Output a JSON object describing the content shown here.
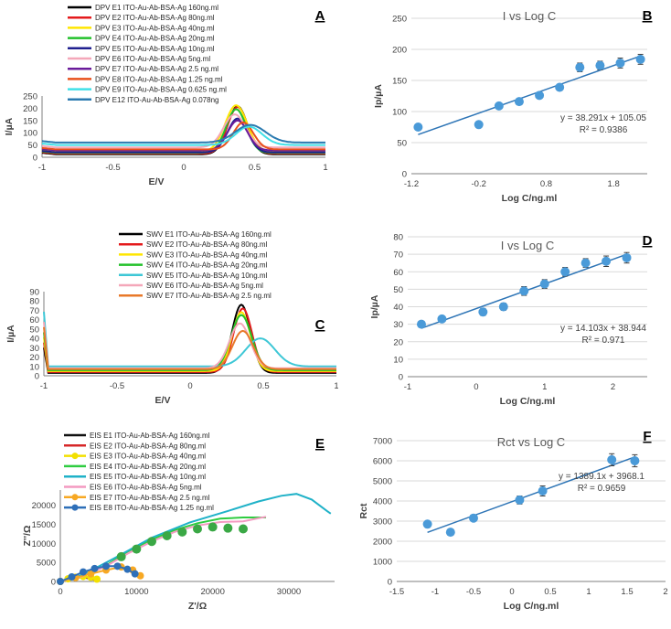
{
  "chart_data": [
    {
      "id": "A",
      "type": "line",
      "panel_label": "A",
      "xlabel": "E/V",
      "ylabel": "I/µA",
      "xlim": [
        -1,
        1
      ],
      "ylim": [
        0,
        250
      ],
      "xticks": [
        -1,
        -0.5,
        0,
        0.5,
        1
      ],
      "yticks": [
        0,
        50,
        100,
        150,
        200,
        250
      ],
      "xtick_labels": [
        "-1",
        "-0.5",
        "0",
        "0.5",
        "1"
      ],
      "ytick_labels": [
        "0",
        "50",
        "100",
        "150",
        "200",
        "250"
      ],
      "series": [
        {
          "name": "DPV E1 ITO-Au-Ab-BSA-Ag 160ng.ml",
          "color": "#000000",
          "base": 12,
          "peak": 208,
          "center": 0.38,
          "width": 0.1
        },
        {
          "name": "DPV E2 ITO-Au-Ab-BSA-Ag 80ng.ml",
          "color": "#e41a1c",
          "base": 15,
          "peak": 205,
          "center": 0.38,
          "width": 0.1
        },
        {
          "name": "DPV E3 ITO-Au-Ab-BSA-Ag 40ng.ml",
          "color": "#ffe600",
          "base": 22,
          "peak": 212,
          "center": 0.37,
          "width": 0.11
        },
        {
          "name": "DPV E4 ITO-Au-Ab-BSA-Ag 20ng.ml",
          "color": "#22c02a",
          "base": 18,
          "peak": 196,
          "center": 0.37,
          "width": 0.1
        },
        {
          "name": "DPV E5 ITO-Au-Ab-BSA-Ag 10ng.ml",
          "color": "#1f1f8f",
          "base": 20,
          "peak": 158,
          "center": 0.38,
          "width": 0.1
        },
        {
          "name": "DPV E6 ITO-Au-Ab-BSA-Ag 5ng.ml",
          "color": "#f4a7b9",
          "base": 40,
          "peak": 175,
          "center": 0.36,
          "width": 0.11
        },
        {
          "name": "DPV E7 ITO-Au-Ab-BSA-Ag 2.5 ng.ml",
          "color": "#6a1b9a",
          "base": 28,
          "peak": 150,
          "center": 0.38,
          "width": 0.1
        },
        {
          "name": "DPV E8 ITO-Au-Ab-BSA-Ag 1.25 ng.ml",
          "color": "#e8511c",
          "base": 32,
          "peak": 142,
          "center": 0.42,
          "width": 0.1
        },
        {
          "name": "DPV E9 ITO-Au-Ab-BSA-Ag 0.625 ng.ml",
          "color": "#40e0e8",
          "base": 50,
          "peak": 125,
          "center": 0.46,
          "width": 0.13
        },
        {
          "name": "DPV E12 ITO-Au-Ab-BSA-Ag 0.078ng",
          "color": "#2a7ab0",
          "base": 60,
          "peak": 132,
          "center": 0.47,
          "width": 0.15
        }
      ]
    },
    {
      "id": "B",
      "type": "scatter",
      "panel_label": "B",
      "title": "I vs Log C",
      "xlabel": "Log C/ng.ml",
      "ylabel": "Ip/µA",
      "xlim": [
        -1.2,
        2.3
      ],
      "ylim": [
        0,
        250
      ],
      "xticks": [
        -1.2,
        -0.2,
        0.8,
        1.8
      ],
      "yticks": [
        0,
        50,
        100,
        150,
        200,
        250
      ],
      "xtick_labels": [
        "-1.2",
        "-0.2",
        "0.8",
        "1.8"
      ],
      "ytick_labels": [
        "0",
        "50",
        "100",
        "150",
        "200",
        "250"
      ],
      "x": [
        -1.1,
        -0.2,
        0.1,
        0.4,
        0.7,
        1.0,
        1.3,
        1.6,
        1.9,
        2.2
      ],
      "y": [
        75,
        79,
        109,
        116,
        126,
        139,
        171,
        174,
        178,
        184
      ],
      "error": [
        3,
        3,
        4,
        4,
        5,
        5,
        7,
        7,
        8,
        8
      ],
      "fit": {
        "slope": 38.291,
        "intercept": 105.05,
        "x_range": [
          -1.1,
          2.2
        ]
      },
      "equation": "y = 38.291x + 105.05",
      "r2": "R² = 0.9386"
    },
    {
      "id": "C",
      "type": "line",
      "panel_label": "C",
      "xlabel": "E/V",
      "ylabel": "I/µA",
      "xlim": [
        -1,
        1
      ],
      "ylim": [
        0,
        90
      ],
      "xticks": [
        -1,
        -0.5,
        0,
        0.5,
        1
      ],
      "yticks": [
        0,
        10,
        20,
        30,
        40,
        50,
        60,
        70,
        80,
        90
      ],
      "xtick_labels": [
        "-1",
        "-0.5",
        "0",
        "0.5",
        "1"
      ],
      "ytick_labels": [
        "0",
        "10",
        "20",
        "30",
        "40",
        "50",
        "60",
        "70",
        "80",
        "90"
      ],
      "series": [
        {
          "name": "SWV E1 ITO-Au-Ab-BSA-Ag 160ng.ml",
          "color": "#000000",
          "base": 3,
          "peak": 76,
          "center": 0.35,
          "width": 0.09
        },
        {
          "name": "SWV E2 ITO-Au-Ab-BSA-Ag 80ng.ml",
          "color": "#e41a1c",
          "base": 4,
          "peak": 72,
          "center": 0.36,
          "width": 0.09
        },
        {
          "name": "SWV E3 ITO-Au-Ab-BSA-Ag 40ng.ml",
          "color": "#ffe600",
          "base": 5,
          "peak": 68,
          "center": 0.35,
          "width": 0.09
        },
        {
          "name": "SWV E4 ITO-Au-Ab-BSA-Ag 20ng.ml",
          "color": "#22c02a",
          "base": 6,
          "peak": 65,
          "center": 0.35,
          "width": 0.1
        },
        {
          "name": "SWV E5 ITO-Au-Ab-BSA-Ag 10ng.ml",
          "color": "#3ec7d6",
          "base": 10,
          "peak": 40,
          "center": 0.48,
          "width": 0.14
        },
        {
          "name": "SWV E6 ITO-Au-Ab-BSA-Ag 5ng.ml",
          "color": "#f4a7b9",
          "base": 8,
          "peak": 56,
          "center": 0.34,
          "width": 0.1
        },
        {
          "name": "SWV E7 ITO-Au-Ab-BSA-Ag 2.5 ng.ml",
          "color": "#e8792a",
          "base": 7,
          "peak": 48,
          "center": 0.36,
          "width": 0.1
        }
      ]
    },
    {
      "id": "D",
      "type": "scatter",
      "panel_label": "D",
      "title": "I vs Log C",
      "xlabel": "Log C/ng.ml",
      "ylabel": "Ip/µA",
      "xlim": [
        -1,
        2.5
      ],
      "ylim": [
        0,
        80
      ],
      "xticks": [
        -1,
        0,
        1,
        2
      ],
      "yticks": [
        0,
        10,
        20,
        30,
        40,
        50,
        60,
        70,
        80
      ],
      "xtick_labels": [
        "-1",
        "0",
        "1",
        "2"
      ],
      "ytick_labels": [
        "0",
        "10",
        "20",
        "30",
        "40",
        "50",
        "60",
        "70",
        "80"
      ],
      "x": [
        -0.8,
        -0.5,
        0.1,
        0.4,
        0.7,
        1.0,
        1.3,
        1.6,
        1.9,
        2.2
      ],
      "y": [
        30,
        33,
        37,
        40,
        49,
        53,
        60,
        65,
        66,
        68
      ],
      "error": [
        1,
        1,
        2,
        2,
        2.5,
        2.5,
        2.5,
        2.5,
        3,
        3
      ],
      "fit": {
        "slope": 14.103,
        "intercept": 38.944,
        "x_range": [
          -0.8,
          2.2
        ]
      },
      "equation": "y = 14.103x + 38.944",
      "r2": "R² = 0.971"
    },
    {
      "id": "E",
      "type": "scatter",
      "panel_label": "E",
      "xlabel": "Z'/Ω",
      "ylabel": "Z''/Ω",
      "xlim": [
        0,
        36000
      ],
      "ylim": [
        0,
        24000
      ],
      "xticks": [
        0,
        10000,
        20000,
        30000
      ],
      "yticks": [
        0,
        5000,
        10000,
        15000,
        20000
      ],
      "xtick_labels": [
        "0",
        "10000",
        "20000",
        "30000"
      ],
      "ytick_labels": [
        "0",
        "5000",
        "10000",
        "15000",
        "20000"
      ],
      "series": [
        {
          "name": "EIS E1 ITO-Au-Ab-BSA-Ag 160ng.ml",
          "color": "#111111",
          "marker": "plus",
          "x": [
            0,
            800,
            1600,
            2400,
            3200,
            4000,
            4600
          ],
          "y": [
            0,
            500,
            900,
            1100,
            1000,
            700,
            300
          ]
        },
        {
          "name": "EIS E2 ITO-Au-Ab-BSA-Ag 80ng.ml",
          "color": "#d62728",
          "marker": "x",
          "x": [
            0,
            900,
            1800,
            2800,
            3800,
            4500
          ],
          "y": [
            0,
            600,
            1000,
            1200,
            900,
            400
          ]
        },
        {
          "name": "EIS E3 ITO-Au-Ab-BSA-Ag 40ng.ml",
          "color": "#f2e000",
          "marker": "circle",
          "x": [
            0,
            1000,
            2000,
            3000,
            4000,
            4800
          ],
          "y": [
            0,
            700,
            1100,
            1300,
            1100,
            600
          ]
        },
        {
          "name": "EIS E4 ITO-Au-Ab-BSA-Ag 20ng.ml",
          "color": "#2ecc40",
          "marker": "dash",
          "x": [
            0,
            3000,
            6000,
            9000,
            12000,
            15000,
            18000,
            21000,
            24000,
            27000
          ],
          "y": [
            0,
            1500,
            4200,
            8000,
            11000,
            13500,
            15300,
            16500,
            16800,
            16800
          ]
        },
        {
          "name": "EIS E5 ITO-Au-Ab-BSA-Ag 10ng.ml",
          "color": "#20b2c8",
          "marker": "none",
          "x": [
            0,
            3000,
            7000,
            12000,
            17000,
            22000,
            26000,
            29000,
            31000,
            33000,
            35000,
            35500
          ],
          "y": [
            0,
            1800,
            6000,
            11500,
            15500,
            18500,
            21000,
            22500,
            23000,
            21500,
            18500,
            17800
          ]
        },
        {
          "name": "EIS E6 ITO-Au-Ab-BSA-Ag 5ng.ml",
          "color": "#f49ac1",
          "marker": "dash",
          "x": [
            0,
            3000,
            6000,
            9000,
            12000,
            15000,
            18000,
            21000,
            24000,
            27000
          ],
          "y": [
            0,
            1400,
            4000,
            7500,
            10500,
            13000,
            14700,
            15600,
            15800,
            17000
          ]
        },
        {
          "name": "EIS E7 ITO-Au-Ab-BSA-Ag 2.5 ng.ml",
          "color": "#f7a823",
          "marker": "circle",
          "x": [
            0,
            2000,
            4000,
            6000,
            8000,
            9500,
            10500
          ],
          "y": [
            0,
            1000,
            2000,
            3000,
            3800,
            3000,
            1500
          ]
        },
        {
          "name": "EIS E8 ITO-Au-Ab-BSA-Ag 1.25 ng.ml",
          "color": "#2e6fb8",
          "marker": "circle",
          "x": [
            0,
            1500,
            3000,
            4500,
            6000,
            7500,
            8800,
            9800
          ],
          "y": [
            0,
            1200,
            2500,
            3400,
            4000,
            4000,
            3200,
            2000
          ]
        },
        {
          "name": "EIS E3 ITO-Au-Ab-BSA-Ag 40ng.ml",
          "color": "#3aa845",
          "marker": "circle",
          "legend": false,
          "x": [
            8000,
            10000,
            12000,
            14000,
            16000,
            18000,
            20000,
            22000,
            24000
          ],
          "y": [
            6500,
            8500,
            10500,
            12000,
            13000,
            13800,
            14300,
            14000,
            13800
          ]
        }
      ]
    },
    {
      "id": "F",
      "type": "scatter",
      "panel_label": "F",
      "title": "Rct vs Log C",
      "xlabel": "Log C/ng.ml",
      "ylabel": "Rct",
      "xlim": [
        -1.5,
        2
      ],
      "ylim": [
        0,
        7000
      ],
      "xticks": [
        -1.5,
        -1,
        -0.5,
        0,
        0.5,
        1,
        1.5,
        2
      ],
      "yticks": [
        0,
        1000,
        2000,
        3000,
        4000,
        5000,
        6000,
        7000
      ],
      "xtick_labels": [
        "-1.5",
        "-1",
        "-0.5",
        "0",
        "0.5",
        "1",
        "1.5",
        "2"
      ],
      "ytick_labels": [
        "0",
        "1000",
        "2000",
        "3000",
        "4000",
        "5000",
        "6000",
        "7000"
      ],
      "x": [
        -1.1,
        -0.8,
        -0.5,
        0.1,
        0.4,
        1.3,
        1.6
      ],
      "y": [
        2850,
        2450,
        3150,
        4050,
        4500,
        6050,
        6000
      ],
      "error": [
        100,
        100,
        150,
        200,
        250,
        300,
        300
      ],
      "fit": {
        "slope": 1389.1,
        "intercept": 3968.1,
        "x_range": [
          -1.1,
          1.6
        ]
      },
      "equation": "y = 1389.1x + 3968.1",
      "r2": "R² = 0.9659"
    }
  ]
}
